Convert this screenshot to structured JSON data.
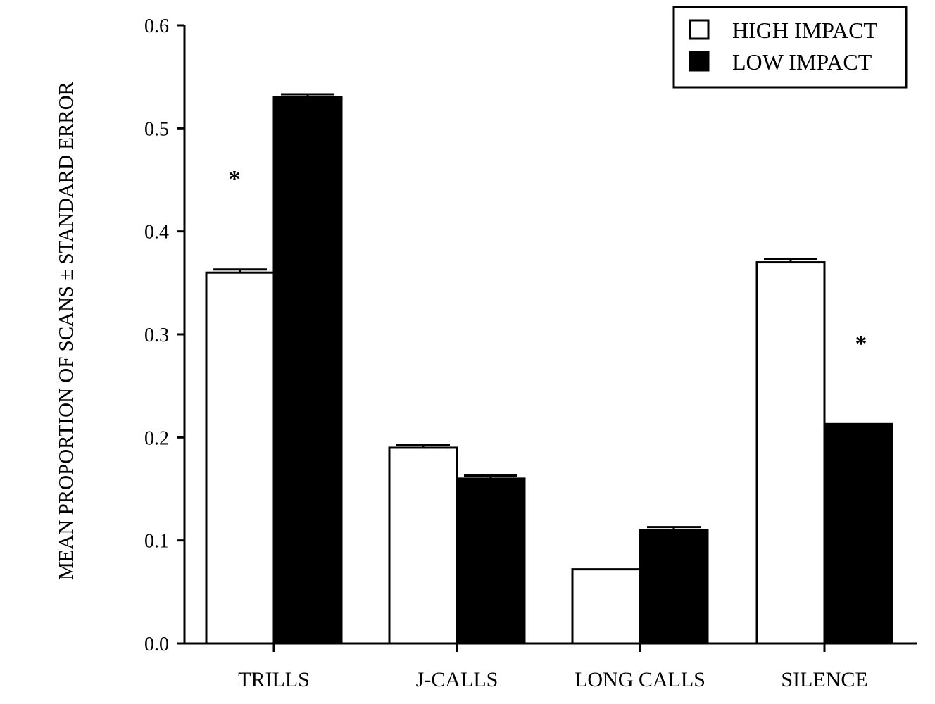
{
  "chart_data": {
    "type": "bar",
    "categories": [
      "TRILLS",
      "J-CALLS",
      "LONG CALLS",
      "SILENCE"
    ],
    "series": [
      {
        "name": "HIGH IMPACT",
        "values": [
          0.36,
          0.19,
          0.072,
          0.37
        ],
        "color": "#ffffff"
      },
      {
        "name": "LOW IMPACT",
        "values": [
          0.53,
          0.16,
          0.11,
          0.213
        ],
        "color": "#000000"
      }
    ],
    "error": {
      "HIGH IMPACT": [
        0.003,
        0.003,
        0.0,
        0.003
      ],
      "LOW IMPACT": [
        0.003,
        0.003,
        0.003,
        0.0
      ]
    },
    "ylabel": "MEAN PROPORTION OF SCANS ± STANDARD ERROR",
    "xlabel": "",
    "ylim": [
      0,
      0.6
    ],
    "yticks": [
      "0.0",
      "0.1",
      "0.2",
      "0.3",
      "0.4",
      "0.5",
      "0.6"
    ],
    "grid": false,
    "legend_position": "top-right",
    "annotations": [
      {
        "text": "*",
        "category": "TRILLS",
        "y": 0.46
      },
      {
        "text": "*",
        "category": "SILENCE",
        "y": 0.3
      }
    ]
  }
}
